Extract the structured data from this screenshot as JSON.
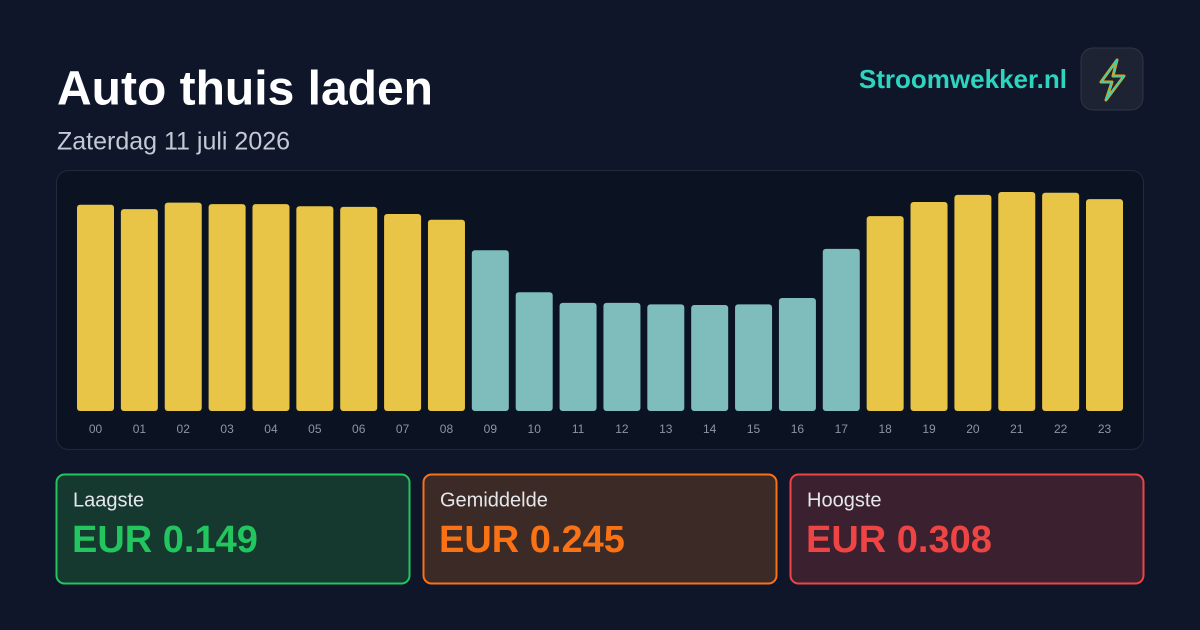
{
  "header": {
    "title": "Auto thuis laden",
    "subtitle": "Zaterdag 11 juli 2026",
    "brand": "Stroomwekker.nl"
  },
  "chart_data": {
    "type": "bar",
    "categories": [
      "00",
      "01",
      "02",
      "03",
      "04",
      "05",
      "06",
      "07",
      "08",
      "09",
      "10",
      "11",
      "12",
      "13",
      "14",
      "15",
      "16",
      "17",
      "18",
      "19",
      "20",
      "21",
      "22",
      "23"
    ],
    "values": [
      0.29,
      0.284,
      0.293,
      0.291,
      0.291,
      0.288,
      0.287,
      0.277,
      0.269,
      0.226,
      0.167,
      0.152,
      0.152,
      0.15,
      0.149,
      0.15,
      0.159,
      0.228,
      0.274,
      0.294,
      0.304,
      0.308,
      0.307,
      0.298
    ],
    "colors": [
      "#e8c547",
      "#e8c547",
      "#e8c547",
      "#e8c547",
      "#e8c547",
      "#e8c547",
      "#e8c547",
      "#e8c547",
      "#e8c547",
      "#7fbcbc",
      "#7fbcbc",
      "#7fbcbc",
      "#7fbcbc",
      "#7fbcbc",
      "#7fbcbc",
      "#7fbcbc",
      "#7fbcbc",
      "#7fbcbc",
      "#e8c547",
      "#e8c547",
      "#e8c547",
      "#e8c547",
      "#e8c547",
      "#e8c547"
    ]
  },
  "stats": [
    {
      "label": "Laagste",
      "value": "EUR 0.149"
    },
    {
      "label": "Gemiddelde",
      "value": "EUR 0.245"
    },
    {
      "label": "Hoogste",
      "value": "EUR 0.308"
    }
  ]
}
